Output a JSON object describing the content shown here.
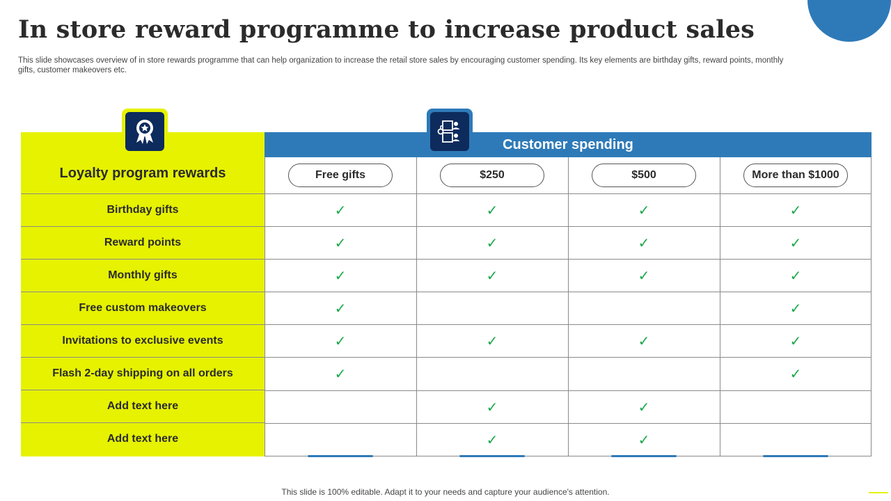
{
  "title": "In store reward programme to increase product sales",
  "subtitle": "This slide showcases overview of in store rewards programme that can help organization to increase the retail store sales by encouraging customer spending. Its key elements are birthday gifts, reward points, monthly gifts, customer makeovers etc.",
  "table": {
    "left_header": "Loyalty  program rewards",
    "band_header": "Customer spending",
    "columns": [
      "Free gifts",
      "$250",
      "$500",
      "More than $1000"
    ],
    "rows": [
      {
        "label": "Birthday gifts",
        "checks": [
          true,
          true,
          true,
          true
        ]
      },
      {
        "label": "Reward points",
        "checks": [
          true,
          true,
          true,
          true
        ]
      },
      {
        "label": "Monthly gifts",
        "checks": [
          true,
          true,
          true,
          true
        ]
      },
      {
        "label": "Free custom makeovers",
        "checks": [
          true,
          false,
          false,
          true
        ]
      },
      {
        "label": "Invitations to exclusive events",
        "checks": [
          true,
          true,
          true,
          true
        ]
      },
      {
        "label": "Flash 2-day shipping on all orders",
        "checks": [
          true,
          false,
          false,
          true
        ]
      },
      {
        "label": "Add text here",
        "checks": [
          false,
          true,
          true,
          false
        ]
      },
      {
        "label": "Add text here",
        "checks": [
          false,
          true,
          true,
          false
        ]
      }
    ],
    "check_symbol": "✓"
  },
  "icons": {
    "left": "award-ribbon-icon",
    "right": "customer-flow-icon"
  },
  "colors": {
    "accent_blue": "#2e7ab8",
    "accent_yellow": "#e6f200",
    "icon_navy": "#0d2b5c",
    "check_green": "#19a84a"
  },
  "footer": "This slide is 100% editable. Adapt it to your needs and capture your audience's attention."
}
